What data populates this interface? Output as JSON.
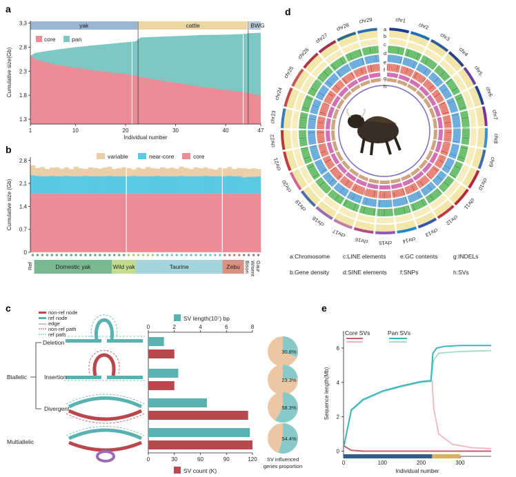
{
  "panel_a": {
    "label": "a",
    "groups": [
      {
        "name": "yak",
        "color": "#9bb5d3"
      },
      {
        "name": "cattle",
        "color": "#ead7a3"
      },
      {
        "name": "BWG",
        "color": "#b7c9d8"
      }
    ],
    "legend": {
      "core": "core",
      "pan": "pan"
    },
    "colors": {
      "core": "#ec8c96",
      "pan": "#7ec8c4"
    },
    "ylabel": "Cumulative size(Gb)",
    "xlabel": "Individual number",
    "yticks": [
      "3.3",
      "2.8",
      "2.3",
      "1.8",
      "1.3"
    ],
    "xticks": [
      "1",
      "10",
      "20",
      "30",
      "40",
      "47"
    ]
  },
  "panel_b": {
    "label": "b",
    "legend": {
      "variable": "variable",
      "near_core": "near-core",
      "core": "core"
    },
    "colors": {
      "variable": "#ebcfa8",
      "near_core": "#5bc8e4",
      "core": "#ec8c96"
    },
    "ylabel": "Cumulative size (Gb)",
    "yticks": [
      "2.8",
      "2.1",
      "1.4",
      "0.7",
      "0"
    ],
    "ref_label": "Ref",
    "groups": [
      {
        "name": "Domestic yak",
        "color": "#7ab892"
      },
      {
        "name": "Wild yak",
        "color": "#c2dd8e"
      },
      {
        "name": "Taurine",
        "color": "#a3d4dc"
      },
      {
        "name": "Zebu",
        "color": "#d99182"
      }
    ],
    "extra_labels": [
      "Bison",
      "Wisent",
      "Gaur"
    ]
  },
  "panel_c": {
    "label": "c",
    "legend": {
      "non_ref_node": "non-ref node",
      "ref_node": "ref node",
      "edge": "edge",
      "non_ref_path": "non-ref path",
      "ref_path": "ref path"
    },
    "colors": {
      "ref": "#5ab2b0",
      "nonref": "#b8484e",
      "piechart_bg": "#ebc7a5",
      "piechart_fg": "#87cac9"
    },
    "categories_left": {
      "biallelic": "Biallelic",
      "multiallelic": "Multiallelic"
    },
    "categories": [
      "Deletion",
      "Insertion",
      "Divergent"
    ],
    "top_axis_label": "SV length(10⁷) bp",
    "bottom_axis_label": "SV count (K)",
    "top_ticks": [
      "0",
      "2",
      "4",
      "6",
      "8"
    ],
    "bottom_ticks": [
      "0",
      "30",
      "60",
      "90",
      "120"
    ],
    "pie_caption_1": "SV  influenced",
    "pie_caption_2": "genes proportion"
  },
  "chart_data": [
    {
      "type": "area",
      "panel": "a",
      "xlabel": "Individual number",
      "ylabel": "Cumulative size(Gb)",
      "xlim": [
        1,
        47
      ],
      "ylim": [
        1.2,
        3.35
      ],
      "x": [
        1,
        2,
        5,
        10,
        15,
        20,
        22,
        23,
        25,
        30,
        35,
        40,
        43,
        44,
        45,
        47
      ],
      "series": [
        {
          "name": "core",
          "values": [
            2.62,
            2.55,
            2.46,
            2.37,
            2.3,
            2.24,
            2.21,
            2.18,
            2.14,
            2.06,
            1.98,
            1.91,
            1.87,
            1.85,
            1.83,
            1.8
          ]
        },
        {
          "name": "pan",
          "values": [
            2.62,
            2.68,
            2.73,
            2.8,
            2.85,
            2.9,
            2.92,
            3.0,
            3.01,
            3.03,
            3.05,
            3.06,
            3.07,
            3.08,
            3.09,
            3.1
          ]
        }
      ]
    },
    {
      "type": "bar",
      "panel": "b",
      "ylabel": "Cumulative size (Gb)",
      "ylim": [
        0,
        2.9
      ],
      "series": [
        {
          "name": "core",
          "values": [
            1.8,
            1.8,
            1.8,
            1.8,
            1.8,
            1.8,
            1.8,
            1.8,
            1.8,
            1.8,
            1.8,
            1.8,
            1.8,
            1.8,
            1.8,
            1.8,
            1.8,
            1.8,
            1.8,
            1.8,
            1.8,
            1.8,
            1.8,
            1.8,
            1.8,
            1.8,
            1.8,
            1.8,
            1.8,
            1.8,
            1.8,
            1.8,
            1.8,
            1.8,
            1.8,
            1.8,
            1.8,
            1.8,
            1.8,
            1.8,
            1.8,
            1.8,
            1.8,
            1.8,
            1.8,
            1.8,
            1.8,
            1.8
          ]
        },
        {
          "name": "near-core",
          "values": [
            0.55,
            0.53,
            0.52,
            0.52,
            0.53,
            0.52,
            0.52,
            0.53,
            0.52,
            0.52,
            0.52,
            0.53,
            0.52,
            0.52,
            0.52,
            0.52,
            0.53,
            0.52,
            0.52,
            0.52,
            0.52,
            0.53,
            0.52,
            0.52,
            0.52,
            0.52,
            0.53,
            0.52,
            0.52,
            0.52,
            0.52,
            0.53,
            0.52,
            0.52,
            0.52,
            0.52,
            0.53,
            0.52,
            0.52,
            0.52,
            0.52,
            0.53,
            0.52,
            0.52,
            0.48,
            0.5,
            0.5,
            0.51
          ]
        },
        {
          "name": "variable",
          "values": [
            0.3,
            0.24,
            0.28,
            0.22,
            0.25,
            0.27,
            0.23,
            0.26,
            0.22,
            0.29,
            0.24,
            0.21,
            0.27,
            0.25,
            0.23,
            0.26,
            0.28,
            0.22,
            0.24,
            0.27,
            0.25,
            0.2,
            0.26,
            0.23,
            0.28,
            0.25,
            0.22,
            0.27,
            0.24,
            0.26,
            0.23,
            0.28,
            0.25,
            0.22,
            0.27,
            0.24,
            0.26,
            0.23,
            0.2,
            0.26,
            0.24,
            0.27,
            0.22,
            0.25,
            0.28,
            0.24,
            0.26,
            0.23
          ]
        }
      ]
    },
    {
      "type": "bar",
      "panel": "c",
      "categories": [
        "Deletion",
        "Insertion",
        "Divergent",
        "Multiallelic"
      ],
      "series": [
        {
          "name": "SV length(10⁷) bp",
          "values": [
            1.2,
            2.3,
            4.5,
            7.8
          ]
        },
        {
          "name": "SV count (K)",
          "values": [
            30,
            30,
            115,
            120
          ]
        }
      ],
      "pie_percent": [
        30.8,
        23.3,
        58.3,
        54.4
      ]
    },
    {
      "type": "line",
      "panel": "e",
      "xlabel": "Individual number",
      "ylabel": "Sequence length(Mb)",
      "xlim": [
        0,
        380
      ],
      "ylim": [
        -0.3,
        7
      ],
      "yticks": [
        "0",
        "2",
        "4",
        "6"
      ],
      "xticks": [
        "0",
        "100",
        "200",
        "300"
      ],
      "legend": {
        "core": "Core SVs",
        "pan": "Pan SVs"
      },
      "x": [
        1,
        20,
        50,
        100,
        150,
        200,
        225,
        230,
        240,
        260,
        300,
        380
      ],
      "series": [
        {
          "name": "Pan SVs",
          "values": [
            0.3,
            2.4,
            3.0,
            3.5,
            3.8,
            4.05,
            4.1,
            5.7,
            6.0,
            6.1,
            6.15,
            6.15
          ]
        },
        {
          "name": "Core SVs",
          "values": [
            0.3,
            0.05,
            0.0,
            0.0,
            0.0,
            0.0,
            0.0,
            0.0,
            0.0,
            0.0,
            0.0,
            0.0
          ]
        }
      ]
    }
  ],
  "panel_d": {
    "label": "d",
    "chromosomes": [
      "chr1",
      "chr2",
      "chr3",
      "chr4",
      "chr5",
      "chr6",
      "chr7",
      "chr8",
      "chr9",
      "chr10",
      "chr11",
      "chr12",
      "chr13",
      "chr14",
      "chr15",
      "chr16",
      "chr17",
      "chr18",
      "chr19",
      "chr20",
      "chr21",
      "chr22",
      "chr23",
      "chr24",
      "chr25",
      "chr26",
      "chr27",
      "chr28",
      "chr29"
    ],
    "chr_colors": [
      "#1a3a8f",
      "#1f6fbf",
      "#2a5d9a",
      "#2c3f8f",
      "#6b3fa0",
      "#21409a",
      "#7e2fa0",
      "#3a8fd0",
      "#3f6bb0",
      "#b4243c",
      "#b62a3a",
      "#c0364a",
      "#3857a8",
      "#1f8ac8",
      "#8e5ab8",
      "#b44a8e",
      "#c07aa8",
      "#9a6bb8",
      "#4a6ba8",
      "#d0669a",
      "#c23a40",
      "#b23a3a",
      "#3a7bbf",
      "#c04a4a",
      "#c05a5a",
      "#b0344a",
      "#a03050",
      "#2a6a8a",
      "#2f6fa8"
    ],
    "track_letters": [
      "a",
      "b",
      "c",
      "d",
      "e",
      "f",
      "g",
      "h"
    ],
    "legend": [
      "a:Chromosome",
      "c:LINE elements",
      "e:GC contents",
      "g:INDELs",
      "b:Gene density",
      "d:SINE elements",
      "f:SNPs",
      "h:SVs"
    ]
  },
  "panel_e": {
    "label": "e",
    "legend": {
      "core": "Core SVs",
      "pan": "Pan SVs"
    },
    "colors": {
      "core_dark": "#c4606a",
      "core_light": "#f0b6bc",
      "pan_dark": "#3bb4bf",
      "pan_light": "#a7dcc8"
    }
  }
}
